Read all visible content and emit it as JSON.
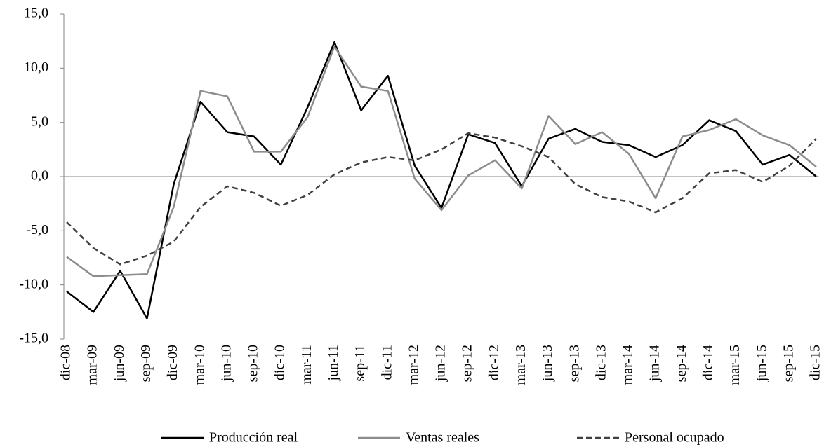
{
  "chart_data": {
    "type": "line",
    "categories": [
      "dic-08",
      "mar-09",
      "jun-09",
      "sep-09",
      "dic-09",
      "mar-10",
      "jun-10",
      "sep-10",
      "dic-10",
      "mar-11",
      "jun-11",
      "sep-11",
      "dic-11",
      "mar-12",
      "jun-12",
      "sep-12",
      "dic-12",
      "mar-13",
      "jun-13",
      "sep-13",
      "dic-13",
      "mar-14",
      "jun-14",
      "sep-14",
      "dic-14",
      "mar-15",
      "jun-15",
      "sep-15",
      "dic-15"
    ],
    "series": [
      {
        "name": "Producción real",
        "color": "#000000",
        "dash": false,
        "values": [
          -10.6,
          -12.5,
          -8.7,
          -13.1,
          -0.7,
          6.9,
          4.1,
          3.7,
          1.1,
          6.4,
          12.4,
          6.1,
          9.3,
          1.0,
          -2.9,
          3.9,
          3.1,
          -0.9,
          3.5,
          4.4,
          3.2,
          2.9,
          1.8,
          2.9,
          5.2,
          4.2,
          1.1,
          2.0,
          0.0
        ]
      },
      {
        "name": "Ventas reales",
        "color": "#8c8c8c",
        "dash": false,
        "values": [
          -7.4,
          -9.2,
          -9.1,
          -9.0,
          -2.8,
          7.9,
          7.4,
          2.3,
          2.3,
          5.5,
          12.0,
          8.3,
          7.9,
          -0.2,
          -3.1,
          0.1,
          1.5,
          -1.1,
          5.6,
          3.0,
          4.1,
          2.1,
          -2.0,
          3.7,
          4.3,
          5.3,
          3.8,
          2.9,
          0.9
        ]
      },
      {
        "name": "Personal ocupado",
        "color": "#404040",
        "dash": true,
        "values": [
          -4.2,
          -6.6,
          -8.1,
          -7.3,
          -6.0,
          -2.8,
          -0.9,
          -1.5,
          -2.7,
          -1.7,
          0.2,
          1.3,
          1.8,
          1.5,
          2.5,
          4.0,
          3.6,
          2.8,
          1.8,
          -0.7,
          -1.9,
          -2.3,
          -3.3,
          -2.0,
          0.3,
          0.6,
          -0.5,
          1.0,
          3.5
        ]
      }
    ],
    "ylim": [
      -15,
      15
    ],
    "yticks": [
      {
        "value": -15,
        "label": "-15,0"
      },
      {
        "value": -10,
        "label": "-10,0"
      },
      {
        "value": -5,
        "label": "-5,0"
      },
      {
        "value": 0,
        "label": "0,0"
      },
      {
        "value": 5,
        "label": "5,0"
      },
      {
        "value": 10,
        "label": "10,0"
      },
      {
        "value": 15,
        "label": "15,0"
      }
    ],
    "legend": "bottom"
  }
}
